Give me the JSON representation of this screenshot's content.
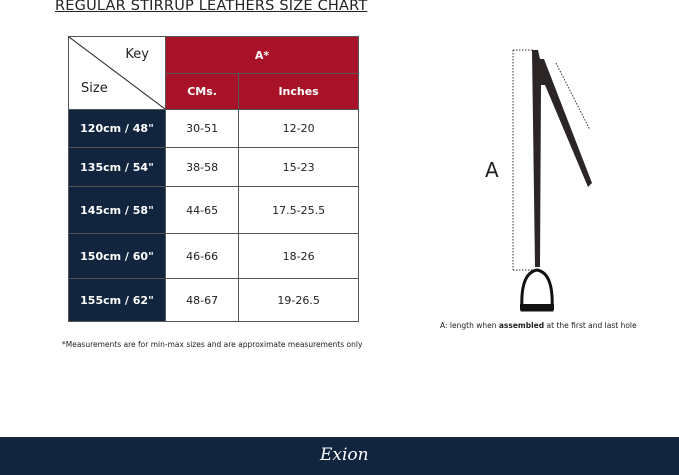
{
  "title": "REGULAR STIRRUP LEATHERS  SIZE CHART",
  "table": {
    "corner_key": "Key",
    "corner_size": "Size",
    "group_header": "A*",
    "columns": [
      "CMs.",
      "Inches"
    ],
    "rows": [
      {
        "size": "120cm / 48\"",
        "cms": "30-51",
        "inches": "12-20"
      },
      {
        "size": "135cm / 54\"",
        "cms": "38-58",
        "inches": "15-23"
      },
      {
        "size": "145cm / 58\"",
        "cms": "44-65",
        "inches": "17.5-25.5"
      },
      {
        "size": "150cm / 60\"",
        "cms": "46-66",
        "inches": "18-26"
      },
      {
        "size": "155cm / 62\"",
        "cms": "48-67",
        "inches": "19-26.5"
      }
    ]
  },
  "note": "*Measurements are for min-max sizes and are approximate measurements only",
  "diagram": {
    "label": "A",
    "caption_pre": "A: length when ",
    "caption_bold": "assembled",
    "caption_post": " at the first and last hole"
  },
  "footer": {
    "logo": "Exion"
  },
  "colors": {
    "red": "#a8132a",
    "navy": "#12253f"
  }
}
